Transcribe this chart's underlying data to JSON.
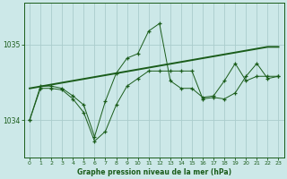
{
  "title": "Graphe pression niveau de la mer (hPa)",
  "bg_color": "#cce8e8",
  "grid_color": "#aacccc",
  "line_color": "#1a5c1a",
  "x_labels": [
    "0",
    "1",
    "2",
    "3",
    "4",
    "5",
    "6",
    "7",
    "8",
    "9",
    "10",
    "11",
    "12",
    "13",
    "14",
    "15",
    "16",
    "17",
    "18",
    "19",
    "20",
    "21",
    "22",
    "23"
  ],
  "y_ticks": [
    1034,
    1035
  ],
  "ylim_lo": 1033.5,
  "ylim_hi": 1035.55,
  "s_upper": [
    1034.0,
    1034.45,
    1034.45,
    1034.42,
    1034.32,
    1034.2,
    1033.78,
    1034.25,
    1034.62,
    1034.82,
    1034.88,
    1035.18,
    1035.28,
    1034.52,
    1034.42,
    1034.42,
    1034.3,
    1034.32,
    1034.52,
    1034.75,
    1034.52,
    1034.58,
    1034.58,
    1034.58
  ],
  "s_trend": [
    1034.42,
    1034.445,
    1034.47,
    1034.495,
    1034.52,
    1034.545,
    1034.57,
    1034.595,
    1034.62,
    1034.645,
    1034.67,
    1034.695,
    1034.72,
    1034.745,
    1034.77,
    1034.795,
    1034.82,
    1034.845,
    1034.87,
    1034.895,
    1034.92,
    1034.945,
    1034.97,
    1034.97
  ],
  "s_lower": [
    1034.0,
    1034.42,
    1034.42,
    1034.4,
    1034.28,
    1034.1,
    1033.72,
    1033.85,
    1034.2,
    1034.45,
    1034.55,
    1034.65,
    1034.65,
    1034.65,
    1034.65,
    1034.65,
    1034.28,
    1034.3,
    1034.28,
    1034.36,
    1034.58,
    1034.75,
    1034.55,
    1034.58
  ]
}
